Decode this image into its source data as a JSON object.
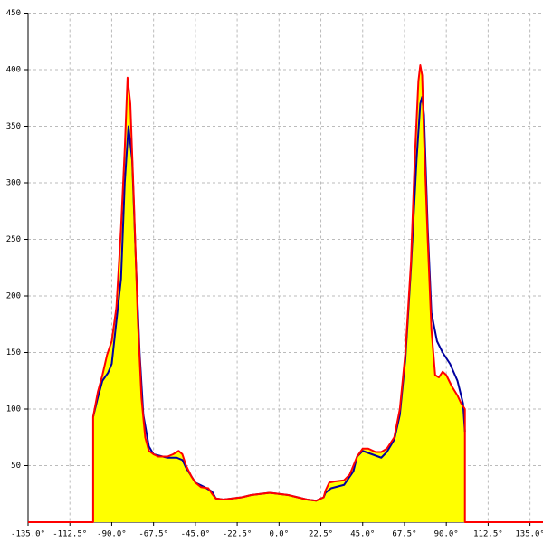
{
  "chart_data": {
    "type": "area",
    "xlim": [
      -135,
      142
    ],
    "ylim": [
      0,
      450
    ],
    "xticks": [
      {
        "value": -135,
        "label": "-135.0°"
      },
      {
        "value": -112.5,
        "label": "-112.5°"
      },
      {
        "value": -90,
        "label": "-90.0°"
      },
      {
        "value": -67.5,
        "label": "-67.5°"
      },
      {
        "value": -45,
        "label": "-45.0°"
      },
      {
        "value": -22.5,
        "label": "-22.5°"
      },
      {
        "value": 0,
        "label": "0.0°"
      },
      {
        "value": 22.5,
        "label": "22.5°"
      },
      {
        "value": 45,
        "label": "45.0°"
      },
      {
        "value": 67.5,
        "label": "67.5°"
      },
      {
        "value": 90,
        "label": "90.0°"
      },
      {
        "value": 112.5,
        "label": "112.5°"
      },
      {
        "value": 135,
        "label": "135.0°"
      }
    ],
    "yticks": [
      50,
      100,
      150,
      200,
      250,
      300,
      350,
      400,
      450
    ],
    "grid": true,
    "series": [
      {
        "color": "#0000a0",
        "x": [
          -100,
          -97.5,
          -95,
          -92,
          -90,
          -85,
          -83,
          -81,
          -79,
          -77,
          -75,
          -73,
          -70,
          -67.5,
          -60,
          -55,
          -52,
          -50,
          -45,
          -40,
          -36,
          -34,
          -30,
          -25,
          -20,
          -15,
          -10,
          -5,
          0,
          5,
          10,
          15,
          20,
          24,
          25,
          28,
          35,
          40,
          42,
          45,
          50,
          55,
          58,
          62,
          65,
          68,
          71,
          74,
          76,
          77,
          78,
          80,
          82,
          85,
          88,
          92,
          96,
          99,
          100
        ],
        "values": [
          93,
          110,
          125,
          132,
          140,
          215,
          300,
          350,
          320,
          230,
          150,
          95,
          67,
          60,
          57,
          57,
          55,
          48,
          35,
          31,
          27,
          21,
          20,
          21,
          22,
          24,
          25,
          26,
          25,
          24,
          22,
          20,
          19,
          22,
          26,
          30,
          33,
          45,
          58,
          63,
          60,
          57,
          62,
          73,
          95,
          145,
          225,
          320,
          370,
          376,
          360,
          260,
          185,
          160,
          150,
          140,
          125,
          105,
          80
        ]
      },
      {
        "color": "#ff0000",
        "fill": "#ffff00",
        "x": [
          -135,
          -100,
          -100,
          -97.5,
          -95,
          -92.5,
          -90,
          -87.5,
          -85,
          -83,
          -81.5,
          -80,
          -78,
          -76,
          -74,
          -72,
          -70,
          -67.5,
          -65,
          -60,
          -57,
          -54,
          -52,
          -50,
          -47,
          -45,
          -42,
          -38,
          -36,
          -34,
          -30,
          -25,
          -20,
          -15,
          -10,
          -5,
          0,
          5,
          10,
          15,
          20,
          24,
          25,
          27,
          30,
          35,
          38,
          42,
          45,
          48,
          52,
          55,
          58,
          62,
          65,
          68,
          71,
          73,
          75,
          76,
          77,
          78,
          80,
          82,
          84,
          86,
          88,
          90,
          93,
          96,
          98,
          100,
          100,
          142
        ],
        "values": [
          0,
          0,
          93,
          115,
          130,
          148,
          160,
          190,
          260,
          330,
          393,
          370,
          280,
          180,
          110,
          75,
          63,
          60,
          58,
          58,
          60,
          63,
          60,
          50,
          40,
          35,
          31,
          30,
          25,
          21,
          20,
          21,
          22,
          24,
          25,
          26,
          25,
          24,
          22,
          20,
          19,
          22,
          28,
          35,
          36,
          37,
          42,
          58,
          65,
          65,
          62,
          62,
          65,
          75,
          100,
          150,
          230,
          320,
          390,
          404,
          395,
          340,
          250,
          170,
          130,
          128,
          133,
          130,
          120,
          112,
          105,
          100,
          0,
          0
        ]
      }
    ]
  }
}
